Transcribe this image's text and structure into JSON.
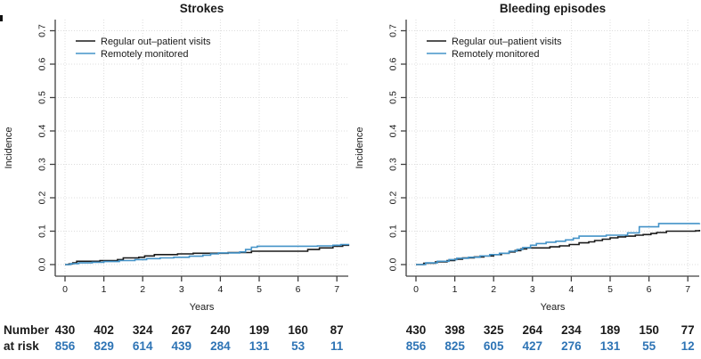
{
  "figure": {
    "risk_label_line1": "Number",
    "risk_label_line2": "at risk",
    "colors": {
      "regular": "#1a1a1a",
      "remote": "#4493c8",
      "risk_regular": "#1a1a1a",
      "risk_remote": "#2e74b5",
      "grid": "#dcdcdc",
      "axis": "#404040"
    }
  },
  "chart_data": [
    {
      "type": "line",
      "title": "Strokes",
      "xlabel": "Years",
      "ylabel": "Incidence",
      "xlim": [
        0,
        7.3
      ],
      "ylim": [
        0,
        0.72
      ],
      "xticks": [
        0,
        1,
        2,
        3,
        4,
        5,
        6,
        7
      ],
      "yticks": [
        "0.0",
        "0.1",
        "0.2",
        "0.3",
        "0.4",
        "0.5",
        "0.6",
        "0.7"
      ],
      "grid": true,
      "legend_position": "top-left",
      "series": [
        {
          "name": "Regular out–patient visits",
          "color_key": "regular",
          "steps": [
            [
              0,
              0
            ],
            [
              0.1,
              0.002
            ],
            [
              0.2,
              0.005
            ],
            [
              0.3,
              0.01
            ],
            [
              0.9,
              0.012
            ],
            [
              1.35,
              0.015
            ],
            [
              1.5,
              0.02
            ],
            [
              1.9,
              0.022
            ],
            [
              2.05,
              0.026
            ],
            [
              2.3,
              0.03
            ],
            [
              2.9,
              0.032
            ],
            [
              3.3,
              0.034
            ],
            [
              4.2,
              0.036
            ],
            [
              4.8,
              0.04
            ],
            [
              6.25,
              0.045
            ],
            [
              6.55,
              0.05
            ],
            [
              6.9,
              0.055
            ],
            [
              7.15,
              0.058
            ],
            [
              7.3,
              0.06
            ]
          ]
        },
        {
          "name": "Remotely monitored",
          "color_key": "remote",
          "steps": [
            [
              0,
              0
            ],
            [
              0.15,
              0.003
            ],
            [
              0.35,
              0.005
            ],
            [
              0.7,
              0.007
            ],
            [
              1.0,
              0.009
            ],
            [
              1.4,
              0.012
            ],
            [
              1.8,
              0.015
            ],
            [
              2.1,
              0.018
            ],
            [
              2.45,
              0.02
            ],
            [
              2.8,
              0.022
            ],
            [
              3.2,
              0.025
            ],
            [
              3.55,
              0.028
            ],
            [
              3.75,
              0.032
            ],
            [
              3.95,
              0.035
            ],
            [
              4.5,
              0.038
            ],
            [
              4.65,
              0.045
            ],
            [
              4.8,
              0.052
            ],
            [
              4.95,
              0.055
            ],
            [
              6.5,
              0.056
            ],
            [
              6.9,
              0.058
            ],
            [
              7.1,
              0.06
            ],
            [
              7.3,
              0.062
            ]
          ]
        }
      ],
      "number_at_risk": {
        "times": [
          0,
          1,
          2,
          3,
          4,
          5,
          6,
          7
        ],
        "rows": [
          {
            "name": "Regular out–patient visits",
            "color_key": "risk_regular",
            "values": [
              430,
              402,
              324,
              267,
              240,
              199,
              160,
              87
            ]
          },
          {
            "name": "Remotely monitored",
            "color_key": "risk_remote",
            "values": [
              856,
              829,
              614,
              439,
              284,
              131,
              53,
              11
            ]
          }
        ]
      }
    },
    {
      "type": "line",
      "title": "Bleeding episodes",
      "xlabel": "Years",
      "ylabel": "Incidence",
      "xlim": [
        0,
        7.3
      ],
      "ylim": [
        0,
        0.72
      ],
      "xticks": [
        0,
        1,
        2,
        3,
        4,
        5,
        6,
        7
      ],
      "yticks": [
        "0.0",
        "0.1",
        "0.2",
        "0.3",
        "0.4",
        "0.5",
        "0.6",
        "0.7"
      ],
      "grid": true,
      "legend_position": "top-left",
      "series": [
        {
          "name": "Regular out–patient visits",
          "color_key": "regular",
          "steps": [
            [
              0,
              0
            ],
            [
              0.2,
              0.004
            ],
            [
              0.5,
              0.008
            ],
            [
              0.8,
              0.012
            ],
            [
              1.0,
              0.016
            ],
            [
              1.2,
              0.02
            ],
            [
              1.5,
              0.023
            ],
            [
              1.75,
              0.026
            ],
            [
              2.0,
              0.03
            ],
            [
              2.2,
              0.034
            ],
            [
              2.4,
              0.038
            ],
            [
              2.55,
              0.042
            ],
            [
              2.7,
              0.047
            ],
            [
              2.85,
              0.05
            ],
            [
              3.45,
              0.053
            ],
            [
              3.7,
              0.056
            ],
            [
              3.95,
              0.06
            ],
            [
              4.2,
              0.065
            ],
            [
              4.45,
              0.068
            ],
            [
              4.6,
              0.072
            ],
            [
              4.8,
              0.076
            ],
            [
              5.0,
              0.08
            ],
            [
              5.2,
              0.083
            ],
            [
              5.4,
              0.085
            ],
            [
              5.65,
              0.088
            ],
            [
              5.85,
              0.09
            ],
            [
              6.05,
              0.093
            ],
            [
              6.2,
              0.096
            ],
            [
              6.45,
              0.1
            ],
            [
              7.2,
              0.101
            ],
            [
              7.3,
              0.104
            ]
          ]
        },
        {
          "name": "Remotely monitored",
          "color_key": "remote",
          "steps": [
            [
              0,
              0
            ],
            [
              0.25,
              0.005
            ],
            [
              0.55,
              0.01
            ],
            [
              0.85,
              0.015
            ],
            [
              1.05,
              0.019
            ],
            [
              1.35,
              0.022
            ],
            [
              1.65,
              0.026
            ],
            [
              1.9,
              0.03
            ],
            [
              2.15,
              0.034
            ],
            [
              2.4,
              0.04
            ],
            [
              2.6,
              0.045
            ],
            [
              2.75,
              0.051
            ],
            [
              2.95,
              0.058
            ],
            [
              3.1,
              0.063
            ],
            [
              3.35,
              0.067
            ],
            [
              3.6,
              0.07
            ],
            [
              3.85,
              0.074
            ],
            [
              4.05,
              0.079
            ],
            [
              4.2,
              0.085
            ],
            [
              4.9,
              0.088
            ],
            [
              5.45,
              0.095
            ],
            [
              5.75,
              0.113
            ],
            [
              6.25,
              0.123
            ],
            [
              7.3,
              0.124
            ]
          ]
        }
      ],
      "number_at_risk": {
        "times": [
          0,
          1,
          2,
          3,
          4,
          5,
          6,
          7
        ],
        "rows": [
          {
            "name": "Regular out–patient visits",
            "color_key": "risk_regular",
            "values": [
              430,
              398,
              325,
              264,
              234,
              189,
              150,
              77
            ]
          },
          {
            "name": "Remotely monitored",
            "color_key": "risk_remote",
            "values": [
              856,
              825,
              605,
              427,
              276,
              131,
              55,
              12
            ]
          }
        ]
      }
    }
  ]
}
